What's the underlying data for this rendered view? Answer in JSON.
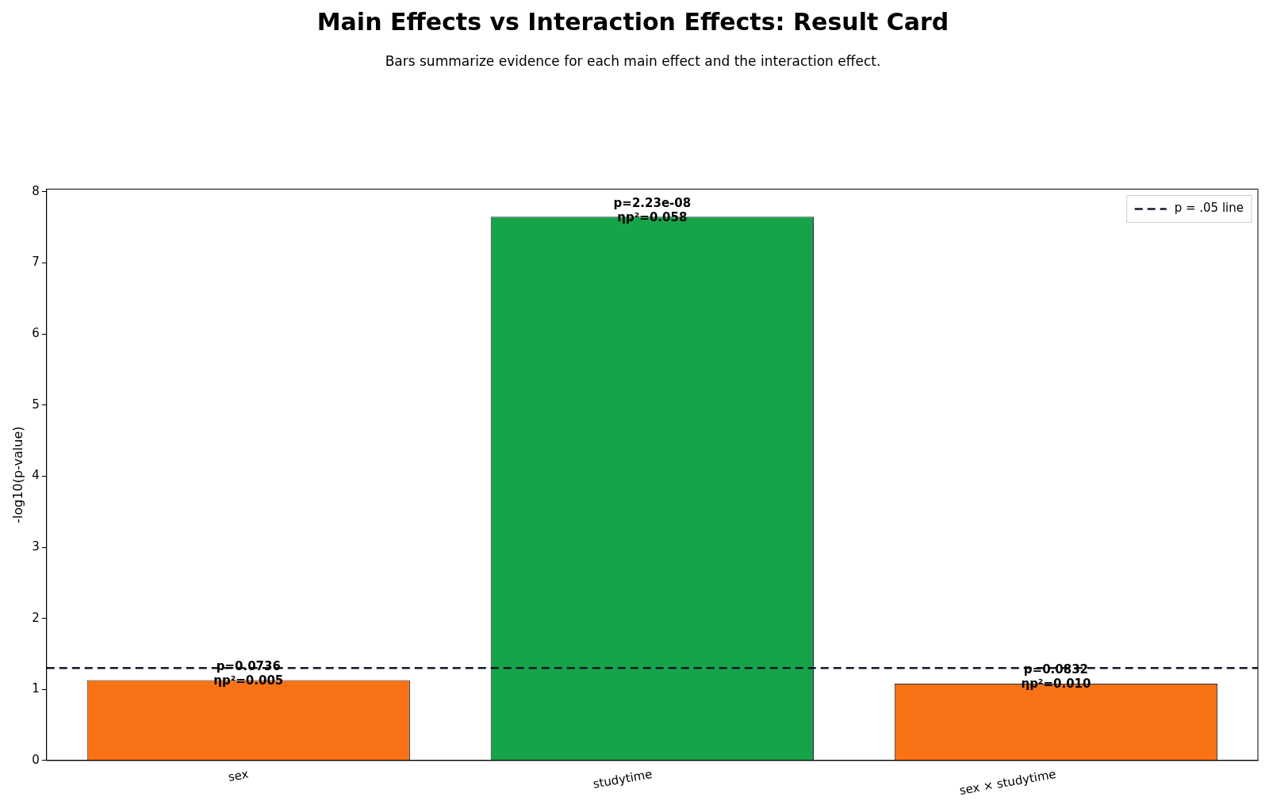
{
  "chart_data": {
    "type": "bar",
    "title": "Main Effects vs Interaction Effects: Result Card",
    "subtitle": "Bars summarize evidence for each main effect and the interaction effect.",
    "ylabel": "-log10(p-value)",
    "categories": [
      "sex",
      "studytime",
      "sex × studytime"
    ],
    "values": [
      1.13,
      7.65,
      1.08
    ],
    "colors": [
      "#f97316",
      "#16a34a",
      "#f97316"
    ],
    "value_labels": [
      "p=0.0736\nηp²=0.005",
      "p=2.23e-08\nηp²=0.058",
      "p=0.0832\nηp²=0.010"
    ],
    "ylim": [
      0,
      8.04
    ],
    "yticks": [
      0,
      1,
      2,
      3,
      4,
      5,
      6,
      7,
      8
    ],
    "grid": false,
    "legend": "top right",
    "ref_lines": [
      {
        "axis": "y",
        "value": 1.301,
        "label": "p = .05 line",
        "color": "#111827",
        "line_style": "dashed"
      }
    ]
  }
}
